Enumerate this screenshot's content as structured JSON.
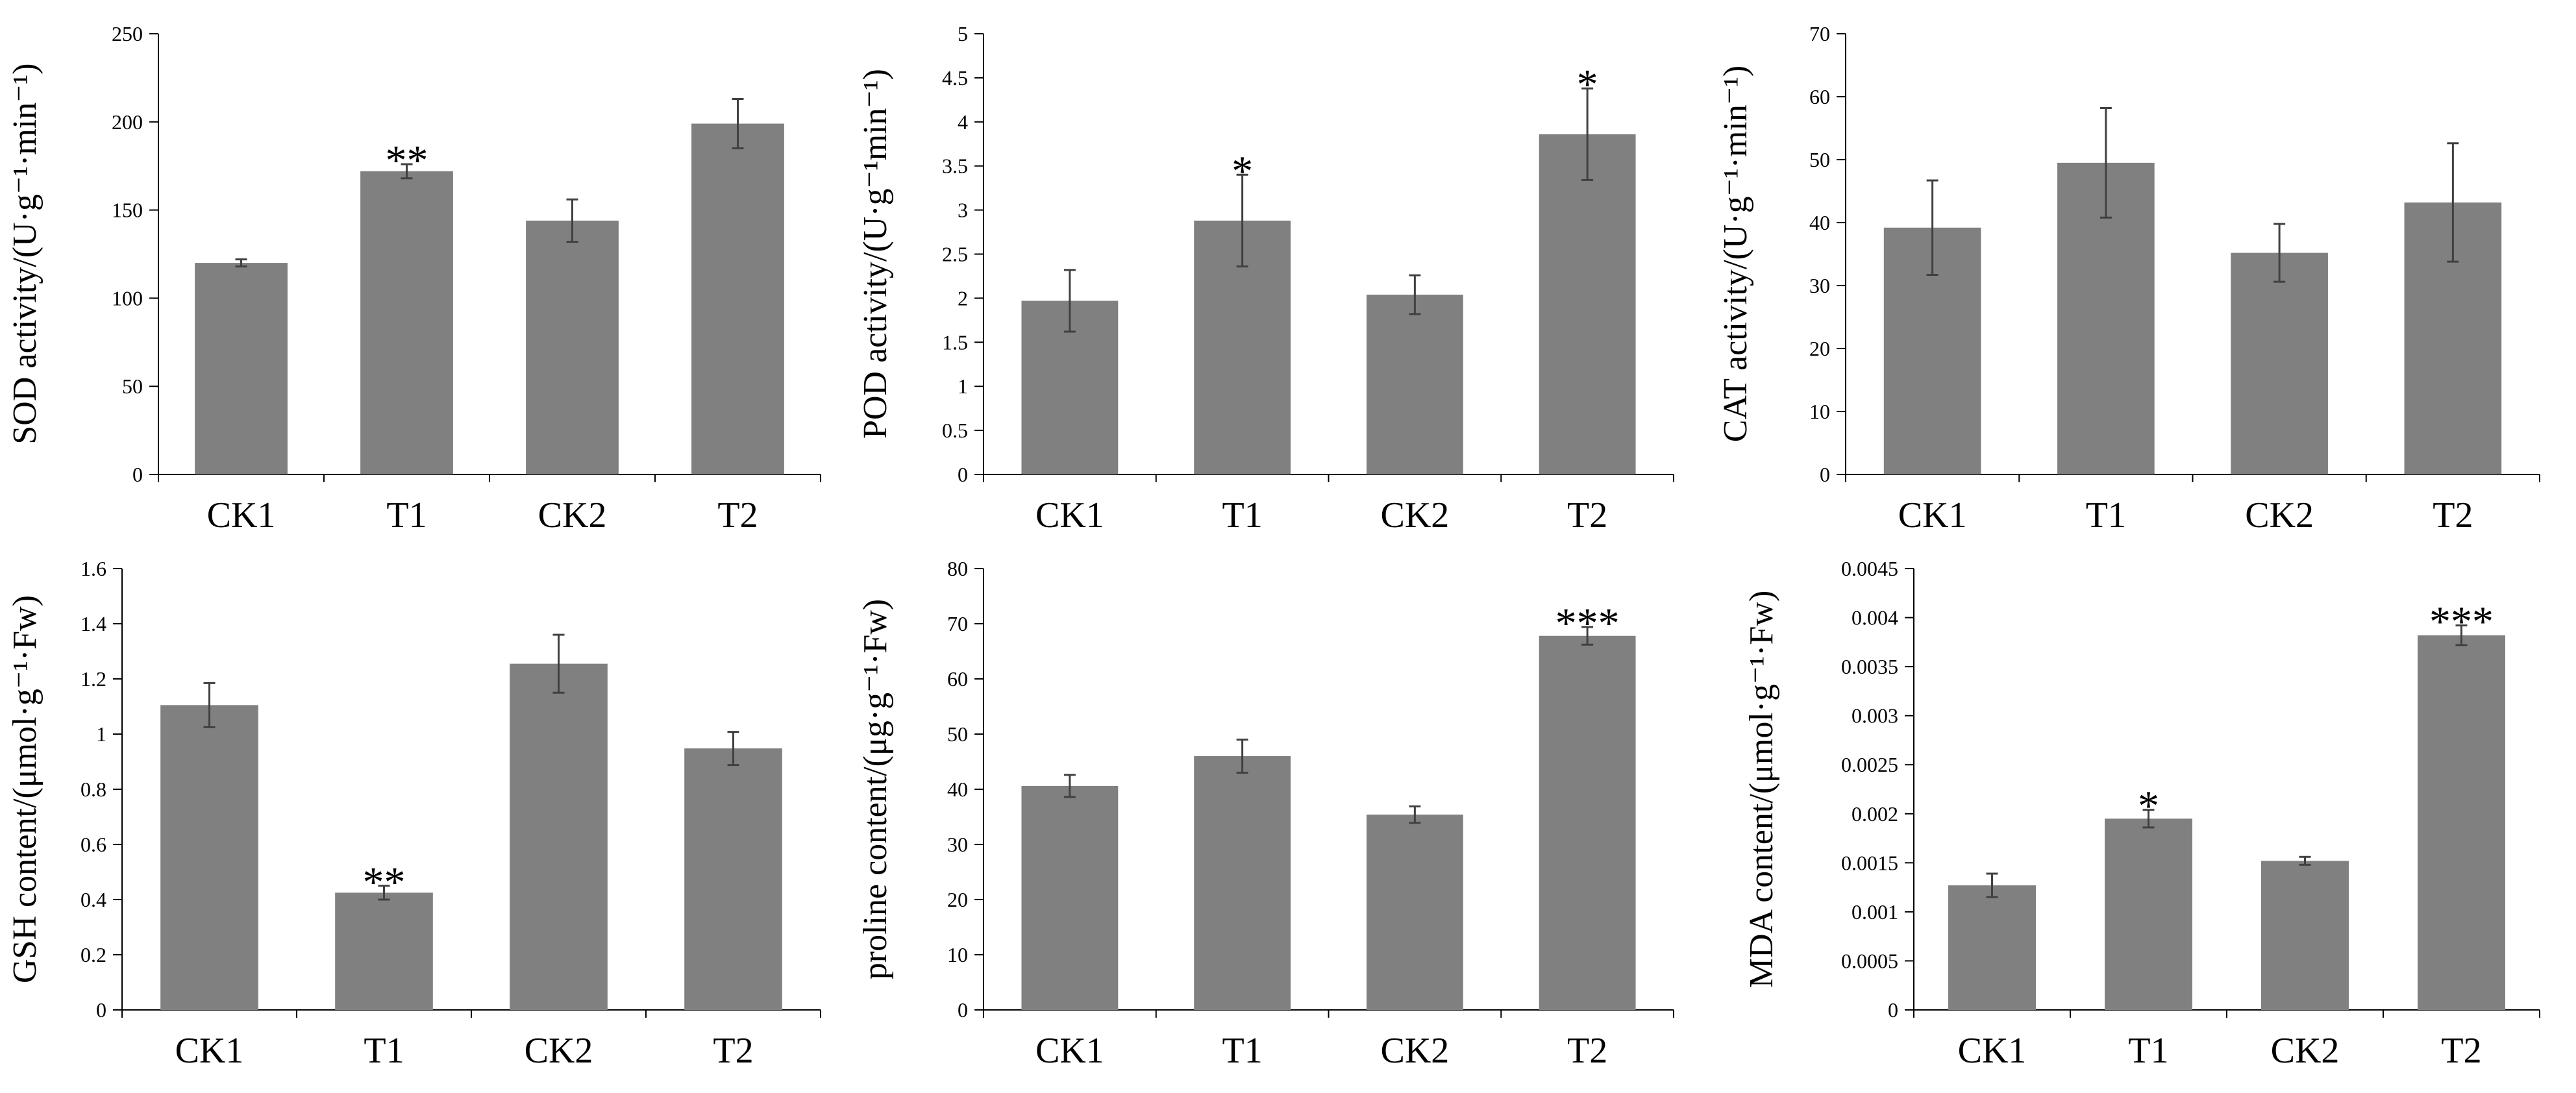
{
  "style": {
    "bar_color": "#808080",
    "error_bar_color": "#404040",
    "axis_color": "#000000"
  },
  "chart_data": [
    {
      "type": "bar",
      "categories": [
        "CK1",
        "T1",
        "CK2",
        "T2"
      ],
      "values": [
        120,
        172,
        144,
        199
      ],
      "errors": [
        2,
        4,
        12,
        14
      ],
      "significance": [
        "",
        "**",
        "",
        ""
      ],
      "ylabel": "SOD activity/(U·g⁻¹·min⁻¹)",
      "ylim": [
        0,
        250
      ],
      "ticks": [
        "0",
        "50",
        "100",
        "150",
        "200",
        "250"
      ]
    },
    {
      "type": "bar",
      "categories": [
        "CK1",
        "T1",
        "CK2",
        "T2"
      ],
      "values": [
        1.97,
        2.88,
        2.04,
        3.86
      ],
      "errors": [
        0.35,
        0.52,
        0.22,
        0.52
      ],
      "significance": [
        "",
        "*",
        "",
        "*"
      ],
      "ylabel": "POD activity/(U·g⁻¹min⁻¹)",
      "ylim": [
        0,
        5
      ],
      "ticks": [
        "0",
        "0.5",
        "1",
        "1.5",
        "2",
        "2.5",
        "3",
        "3.5",
        "4",
        "4.5",
        "5"
      ]
    },
    {
      "type": "bar",
      "categories": [
        "CK1",
        "T1",
        "CK2",
        "T2"
      ],
      "values": [
        39.2,
        49.5,
        35.2,
        43.2
      ],
      "errors": [
        7.5,
        8.7,
        4.6,
        9.4
      ],
      "significance": [
        "",
        "",
        "",
        ""
      ],
      "ylabel": "CAT activity/(U·g⁻¹·min⁻¹)",
      "ylim": [
        0,
        70
      ],
      "ticks": [
        "0",
        "10",
        "20",
        "30",
        "40",
        "50",
        "60",
        "70"
      ]
    },
    {
      "type": "bar",
      "categories": [
        "CK1",
        "T1",
        "CK2",
        "T2"
      ],
      "values": [
        1.105,
        0.425,
        1.255,
        0.948
      ],
      "errors": [
        0.08,
        0.025,
        0.105,
        0.06
      ],
      "significance": [
        "",
        "**",
        "",
        ""
      ],
      "ylabel": "GSH content/(μmol·g⁻¹·Fw)",
      "ylim": [
        0,
        1.6
      ],
      "ticks": [
        "0",
        "0.2",
        "0.4",
        "0.6",
        "0.8",
        "1",
        "1.2",
        "1.4",
        "1.6"
      ]
    },
    {
      "type": "bar",
      "categories": [
        "CK1",
        "T1",
        "CK2",
        "T2"
      ],
      "values": [
        40.6,
        46.0,
        35.4,
        67.8
      ],
      "errors": [
        2.0,
        3.0,
        1.5,
        1.6
      ],
      "significance": [
        "",
        "",
        "",
        "***"
      ],
      "ylabel": "proline content/(μg·g⁻¹·Fw)",
      "ylim": [
        0,
        80
      ],
      "ticks": [
        "0",
        "10",
        "20",
        "30",
        "40",
        "50",
        "60",
        "70",
        "80"
      ]
    },
    {
      "type": "bar",
      "categories": [
        "CK1",
        "T1",
        "CK2",
        "T2"
      ],
      "values": [
        0.00127,
        0.00195,
        0.00152,
        0.00382
      ],
      "errors": [
        0.00012,
        9e-05,
        4e-05,
        0.0001
      ],
      "significance": [
        "",
        "*",
        "",
        "***"
      ],
      "ylabel": "MDA content/(μmol·g⁻¹·Fw)",
      "ylim": [
        0,
        0.0045
      ],
      "ticks": [
        "0",
        "0.0005",
        "0.001",
        "0.0015",
        "0.002",
        "0.0025",
        "0.003",
        "0.0035",
        "0.004",
        "0.0045"
      ]
    }
  ]
}
